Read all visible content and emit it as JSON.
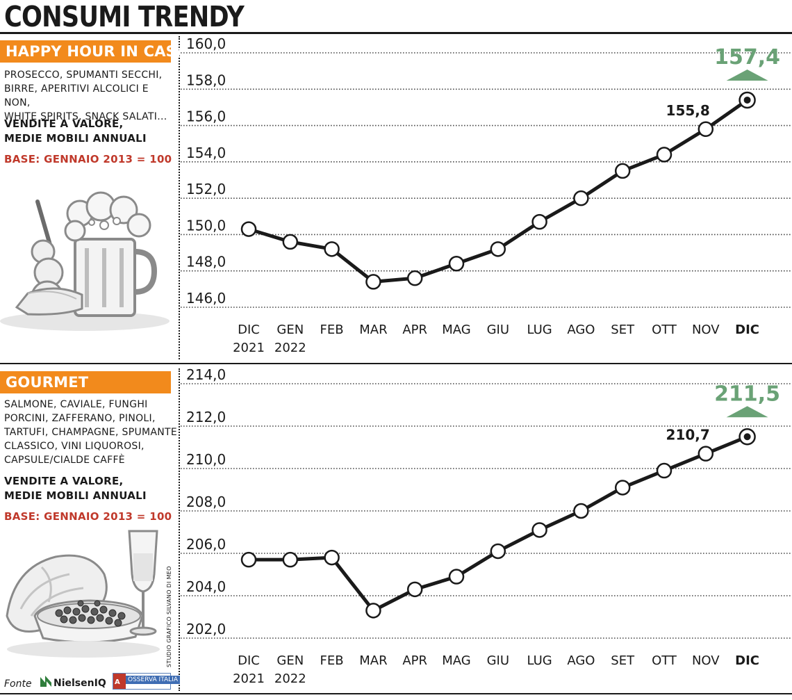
{
  "page": {
    "title": "CONSUMI TRENDY",
    "credit": "STUDIO GRAFICO SILVANO DI MEO",
    "source_label": "Fonte",
    "source_nielsen": "NielsenIQ",
    "source_osserva": "OSSERVA ITALIA"
  },
  "panels": [
    {
      "banner": "HAPPY HOUR IN CASA",
      "desc": [
        "PROSECCO, SPUMANTI SECCHI,",
        "BIRRE, APERITIVI ALCOLICI E NON,",
        "WHITE SPIRITS, SNACK SALATI..."
      ],
      "measure": [
        "VENDITE A VALORE,",
        "MEDIE MOBILI ANNUALI"
      ],
      "base": "BASE: GENNAIO 2013 = 100"
    },
    {
      "banner": "GOURMET",
      "desc": [
        "SALMONE, CAVIALE, FUNGHI",
        "PORCINI, ZAFFERANO, PINOLI,",
        "TARTUFI, CHAMPAGNE, SPUMANTE",
        "CLASSICO, VINI LIQUOROSI,",
        "CAPSULE/CIALDE CAFFÈ"
      ],
      "measure": [
        "VENDITE A VALORE,",
        "MEDIE MOBILI ANNUALI"
      ],
      "base": "BASE: GENNAIO 2013 = 100"
    }
  ],
  "colors": {
    "orange": "#f28a1c",
    "green": "#6aa276",
    "red": "#c0392b",
    "line": "#1a1a1a"
  },
  "chart_data": [
    {
      "type": "line",
      "categories": [
        "DIC",
        "GEN",
        "FEB",
        "MAR",
        "APR",
        "MAG",
        "GIU",
        "LUG",
        "AGO",
        "SET",
        "OTT",
        "NOV",
        "DIC"
      ],
      "category_years": [
        "2021",
        "2022",
        "",
        "",
        "",
        "",
        "",
        "",
        "",
        "",
        "",
        "",
        ""
      ],
      "values": [
        150.3,
        149.6,
        149.2,
        147.4,
        147.6,
        148.4,
        149.2,
        150.7,
        152.0,
        153.5,
        154.4,
        155.8,
        157.4
      ],
      "ylim": [
        146.0,
        160.0
      ],
      "yticks": [
        146.0,
        148.0,
        150.0,
        152.0,
        154.0,
        156.0,
        158.0,
        160.0
      ],
      "ytick_labels": [
        "146,0",
        "148,0",
        "150,0",
        "152,0",
        "154,0",
        "156,0",
        "158,0",
        "160,0"
      ],
      "prev_label": "155,8",
      "final_label": "157,4",
      "grid": true
    },
    {
      "type": "line",
      "categories": [
        "DIC",
        "GEN",
        "FEB",
        "MAR",
        "APR",
        "MAG",
        "GIU",
        "LUG",
        "AGO",
        "SET",
        "OTT",
        "NOV",
        "DIC"
      ],
      "category_years": [
        "2021",
        "2022",
        "",
        "",
        "",
        "",
        "",
        "",
        "",
        "",
        "",
        "",
        ""
      ],
      "values": [
        205.7,
        205.7,
        205.8,
        203.3,
        204.3,
        204.9,
        206.1,
        207.1,
        208.0,
        209.1,
        209.9,
        210.7,
        211.5
      ],
      "ylim": [
        202.0,
        214.0
      ],
      "yticks": [
        202.0,
        204.0,
        206.0,
        208.0,
        210.0,
        212.0,
        214.0
      ],
      "ytick_labels": [
        "202,0",
        "204,0",
        "206,0",
        "208,0",
        "210,0",
        "212,0",
        "214,0"
      ],
      "prev_label": "210,7",
      "final_label": "211,5",
      "grid": true
    }
  ]
}
